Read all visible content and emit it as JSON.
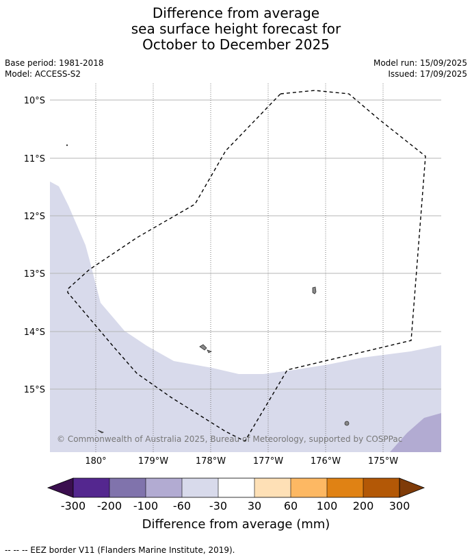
{
  "title": {
    "line1": "Difference from average",
    "line2": "sea surface height forecast for",
    "line3": "October to December 2025"
  },
  "meta": {
    "base_period": "Base period: 1981-2018",
    "model": "Model: ACCESS-S2",
    "model_run": "Model run: 15/09/2025",
    "issued": "Issued: 17/09/2025"
  },
  "map": {
    "lat_labels": [
      "10°S",
      "11°S",
      "12°S",
      "13°S",
      "14°S",
      "15°S"
    ],
    "lon_labels": [
      "180°",
      "179°W",
      "178°W",
      "177°W",
      "176°W",
      "175°W"
    ],
    "copyright": "© Commonwealth of Australia 2025, Bureau of Meteorology, supported by COSPPac"
  },
  "colorbar": {
    "ticks": [
      "-300",
      "-200",
      "-100",
      "-60",
      "-30",
      "30",
      "60",
      "100",
      "200",
      "300"
    ],
    "colors": {
      "extend_low": "#3b0f4f",
      "c1": "#54278f",
      "c2": "#8073ac",
      "c3": "#b2abd2",
      "c4": "#d8daeb",
      "c5": "#ffffff",
      "c6": "#fee0b6",
      "c7": "#fdb863",
      "c8": "#e08214",
      "c9": "#b35806",
      "extend_high": "#7f3b08"
    },
    "title": "Difference from average (mm)"
  },
  "footer": {
    "legend": "--  --  -- EEZ border V11 (Flanders Marine Institute, 2019)."
  }
}
